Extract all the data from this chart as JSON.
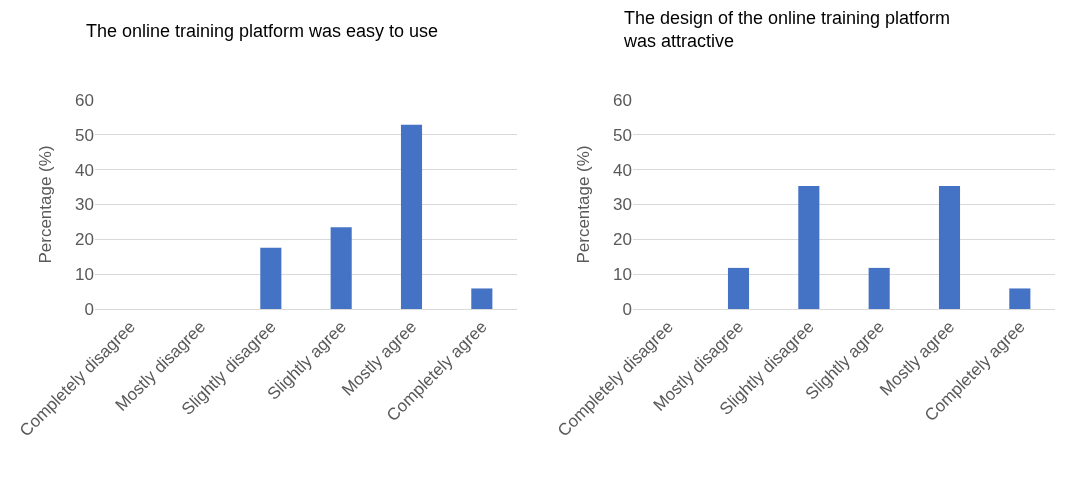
{
  "chart_data": [
    {
      "type": "bar",
      "title": "The online training platform was easy to use",
      "ylabel": "Percentage (%)",
      "categories": [
        "Completely disagree",
        "Mostly disagree",
        "Slightly disagree",
        "Slightly agree",
        "Mostly agree",
        "Completely agree"
      ],
      "values": [
        0,
        0,
        17.6,
        23.5,
        52.9,
        5.9
      ],
      "color": "#4472c4",
      "ylim": [
        0,
        60
      ],
      "yticks": [
        0,
        10,
        20,
        30,
        40,
        50,
        60
      ],
      "grid": "y"
    },
    {
      "type": "bar",
      "title": "The design of the online training platform was attractive",
      "ylabel": "Percentage (%)",
      "categories": [
        "Completely disagree",
        "Mostly disagree",
        "Slightly disagree",
        "Slightly agree",
        "Mostly agree",
        "Completely agree"
      ],
      "values": [
        0,
        11.8,
        35.3,
        11.8,
        35.3,
        5.9
      ],
      "color": "#4472c4",
      "ylim": [
        0,
        60
      ],
      "yticks": [
        0,
        10,
        20,
        30,
        40,
        50,
        60
      ],
      "grid": "y"
    }
  ]
}
